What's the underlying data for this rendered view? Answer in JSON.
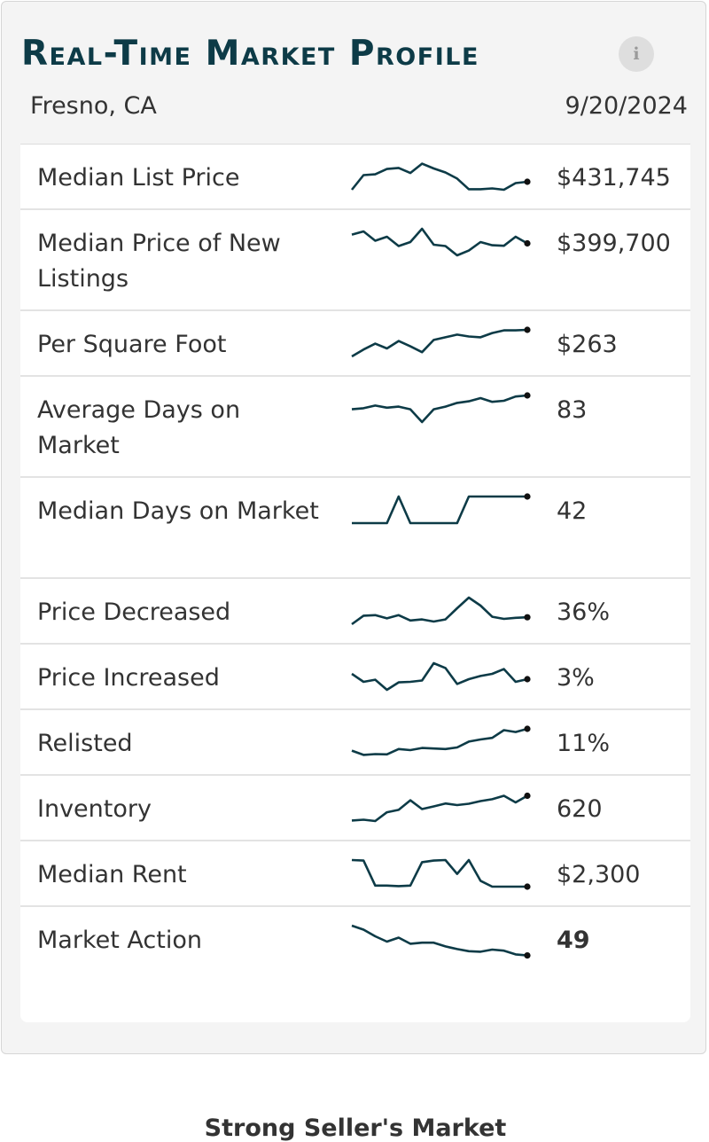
{
  "header": {
    "title": "Real-Time Market Profile",
    "info_icon": "info-icon",
    "info_glyph": "i",
    "location": "Fresno, CA",
    "date": "9/20/2024"
  },
  "colors": {
    "title": "#0d3b47",
    "sparkline": "#0d3b47",
    "endpoint": "#111111"
  },
  "metrics": [
    {
      "label": "Median List Price",
      "value": "$431,745",
      "trend": [
        0,
        0.55,
        0.58,
        0.78,
        0.82,
        0.63,
        0.98,
        0.8,
        0.65,
        0.42,
        0.02,
        0.02,
        0.05,
        0.0,
        0.25,
        0.3
      ]
    },
    {
      "label": "Median Price of New Listings",
      "value": "$399,700",
      "trend": [
        0.78,
        0.9,
        0.55,
        0.7,
        0.35,
        0.5,
        1.0,
        0.4,
        0.35,
        0.0,
        0.18,
        0.5,
        0.38,
        0.36,
        0.7,
        0.45
      ]
    },
    {
      "label": "Per Square Foot",
      "value": "$263",
      "trend": [
        0,
        0.26,
        0.48,
        0.3,
        0.58,
        0.38,
        0.16,
        0.62,
        0.72,
        0.82,
        0.75,
        0.72,
        0.88,
        0.98,
        0.98,
        1.0
      ]
    },
    {
      "label": "Average Days on Market",
      "value": "83",
      "trend": [
        0.48,
        0.52,
        0.62,
        0.54,
        0.58,
        0.48,
        0.0,
        0.48,
        0.58,
        0.72,
        0.78,
        0.9,
        0.76,
        0.8,
        0.96,
        1.0
      ]
    },
    {
      "label": "Median Days on Market",
      "value": "42",
      "trend": [
        0,
        0,
        0,
        0,
        1.0,
        0,
        0,
        0,
        0,
        0,
        1.0,
        1.0,
        1.0,
        1.0,
        1.0,
        1.0
      ]
    },
    {
      "label": "Price Decreased",
      "value": "36%",
      "trend": [
        0,
        0.32,
        0.34,
        0.22,
        0.34,
        0.14,
        0.18,
        0.1,
        0.18,
        0.6,
        1.0,
        0.7,
        0.28,
        0.2,
        0.24,
        0.26
      ]
    },
    {
      "label": "Price Increased",
      "value": "3%",
      "trend": [
        0.6,
        0.3,
        0.38,
        0.0,
        0.28,
        0.3,
        0.35,
        1.0,
        0.82,
        0.22,
        0.4,
        0.52,
        0.6,
        0.78,
        0.3,
        0.4
      ]
    },
    {
      "label": "Relisted",
      "value": "11%",
      "trend": [
        0.18,
        0.02,
        0.05,
        0.04,
        0.24,
        0.2,
        0.28,
        0.26,
        0.24,
        0.3,
        0.52,
        0.6,
        0.66,
        0.95,
        0.88,
        1.0
      ]
    },
    {
      "label": "Inventory",
      "value": "620",
      "trend": [
        0.02,
        0.05,
        0.0,
        0.33,
        0.42,
        0.78,
        0.45,
        0.55,
        0.66,
        0.6,
        0.65,
        0.75,
        0.82,
        0.95,
        0.7,
        0.95
      ]
    },
    {
      "label": "Median Rent",
      "value": "$2,300",
      "trend": [
        1.0,
        0.98,
        0.04,
        0.04,
        0.02,
        0.04,
        0.92,
        0.98,
        1.0,
        0.48,
        1.0,
        0.22,
        0.0,
        0.0,
        0.0,
        0.0
      ]
    },
    {
      "label": "Market Action",
      "value": "49",
      "trend": [
        1.0,
        0.85,
        0.6,
        0.4,
        0.55,
        0.32,
        0.36,
        0.36,
        0.22,
        0.12,
        0.04,
        0.02,
        0.1,
        0.06,
        -0.08,
        -0.12
      ]
    }
  ],
  "summary": "Strong Seller's Market"
}
